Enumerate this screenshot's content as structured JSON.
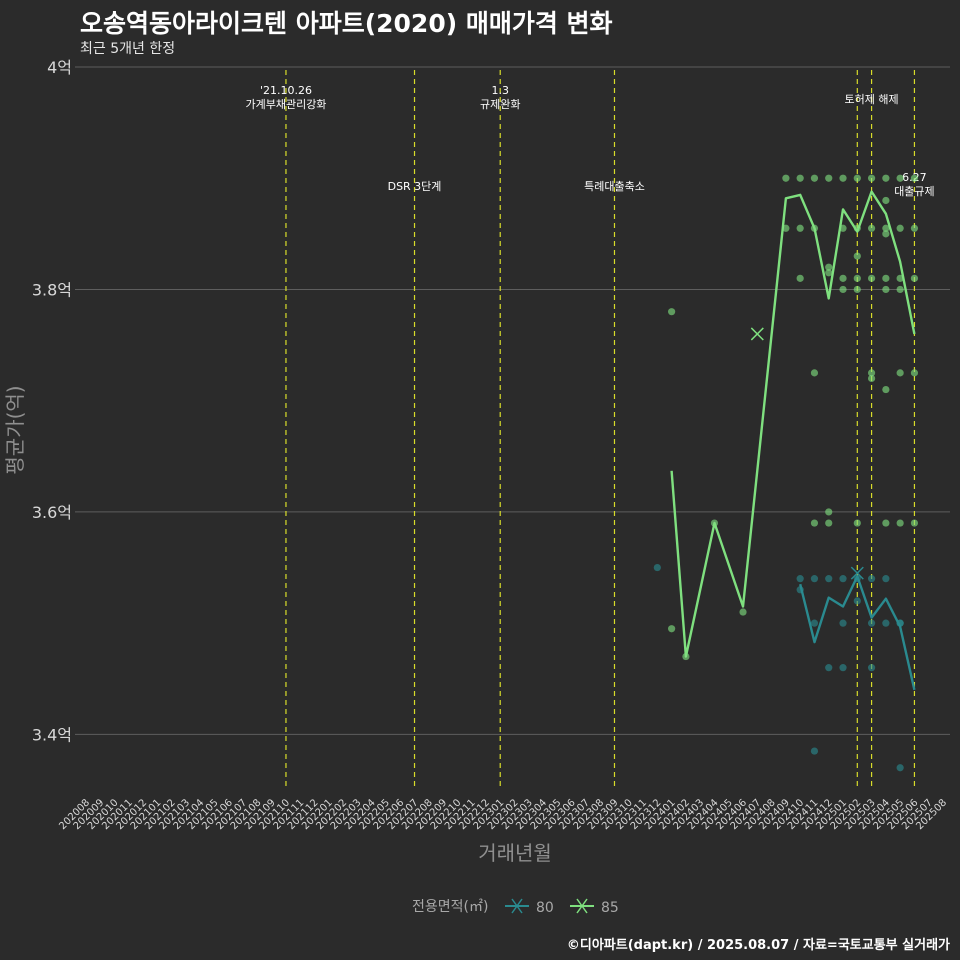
{
  "title": "오송역동아라이크텐 아파트(2020) 매매가격 변화",
  "subtitle": "최근 5개년 한정",
  "caption": "©디아파트(dapt.kr) / 2025.08.07 / 자료=국토교통부 실거래가",
  "chart_data": {
    "type": "line",
    "xlabel": "거래년월",
    "ylabel": "평균가(억)",
    "ylim": [
      3.35,
      4.0
    ],
    "y_ticks": [
      3.4,
      3.6,
      3.8,
      4.0
    ],
    "y_tick_labels": [
      "3.4억",
      "3.6억",
      "3.8억",
      "4억"
    ],
    "categories": [
      "202008",
      "202009",
      "202010",
      "202011",
      "202012",
      "202101",
      "202102",
      "202103",
      "202104",
      "202105",
      "202106",
      "202107",
      "202108",
      "202109",
      "202110",
      "202111",
      "202112",
      "202201",
      "202202",
      "202203",
      "202204",
      "202205",
      "202206",
      "202207",
      "202208",
      "202209",
      "202210",
      "202211",
      "202212",
      "202301",
      "202302",
      "202303",
      "202304",
      "202305",
      "202306",
      "202307",
      "202308",
      "202309",
      "202310",
      "202311",
      "202312",
      "202401",
      "202402",
      "202403",
      "202404",
      "202405",
      "202406",
      "202407",
      "202408",
      "202409",
      "202410",
      "202411",
      "202412",
      "202501",
      "202502",
      "202503",
      "202504",
      "202505",
      "202506",
      "202507",
      "202508"
    ],
    "grid": true,
    "legend": {
      "title": "전용면적(㎡)",
      "position": "bottom"
    },
    "events": [
      {
        "x": "202110",
        "label_lines": [
          "'21.10.26",
          "가계부채관리강화"
        ],
        "level": "top"
      },
      {
        "x": "202207",
        "label_lines": [
          "DSR 3단계"
        ],
        "level": "mid"
      },
      {
        "x": "202301",
        "label_lines": [
          "1.3",
          "규제완화"
        ],
        "level": "top"
      },
      {
        "x": "202309",
        "label_lines": [
          "특례대출축소"
        ],
        "level": "mid"
      },
      {
        "x": "202502",
        "label_lines": [],
        "level": "none"
      },
      {
        "x": "202503",
        "label_lines": [
          "토허제 해제"
        ],
        "level": "upper"
      },
      {
        "x": "202506",
        "label_lines": [
          "6.27",
          "대출규제"
        ],
        "level": "right"
      }
    ],
    "series": [
      {
        "name": "80",
        "color": "#2a8a8f",
        "line": [
          [
            "202410",
            3.535
          ],
          [
            "202411",
            3.483
          ],
          [
            "202412",
            3.523
          ],
          [
            "202501",
            3.515
          ],
          [
            "202502",
            3.542
          ],
          [
            "202503",
            3.505
          ],
          [
            "202504",
            3.522
          ],
          [
            "202505",
            3.497
          ],
          [
            "202506",
            3.44
          ]
        ],
        "points": [
          [
            "202312",
            3.55
          ],
          [
            "202410",
            3.54
          ],
          [
            "202410",
            3.53
          ],
          [
            "202411",
            3.54
          ],
          [
            "202411",
            3.5
          ],
          [
            "202411",
            3.385
          ],
          [
            "202412",
            3.54
          ],
          [
            "202412",
            3.46
          ],
          [
            "202501",
            3.54
          ],
          [
            "202501",
            3.5
          ],
          [
            "202501",
            3.46
          ],
          [
            "202502",
            3.54
          ],
          [
            "202502",
            3.52
          ],
          [
            "202503",
            3.54
          ],
          [
            "202503",
            3.5
          ],
          [
            "202503",
            3.46
          ],
          [
            "202504",
            3.54
          ],
          [
            "202504",
            3.5
          ],
          [
            "202505",
            3.5
          ],
          [
            "202505",
            3.5
          ],
          [
            "202505",
            3.37
          ]
        ],
        "marker": [
          "202502",
          3.545
        ]
      },
      {
        "name": "85",
        "color": "#7fe07f",
        "line": [
          [
            "202401",
            3.637
          ],
          [
            "202402",
            3.47
          ],
          [
            "202404",
            3.59
          ],
          [
            "202406",
            3.515
          ],
          [
            "202409",
            3.882
          ],
          [
            "202410",
            3.885
          ],
          [
            "202411",
            3.855
          ],
          [
            "202412",
            3.792
          ],
          [
            "202501",
            3.872
          ],
          [
            "202502",
            3.852
          ],
          [
            "202503",
            3.888
          ],
          [
            "202504",
            3.868
          ],
          [
            "202505",
            3.825
          ],
          [
            "202506",
            3.76
          ]
        ],
        "points": [
          [
            "202401",
            3.78
          ],
          [
            "202401",
            3.495
          ],
          [
            "202402",
            3.47
          ],
          [
            "202404",
            3.59
          ],
          [
            "202406",
            3.51
          ],
          [
            "202409",
            3.9
          ],
          [
            "202409",
            3.855
          ],
          [
            "202410",
            3.9
          ],
          [
            "202410",
            3.855
          ],
          [
            "202410",
            3.81
          ],
          [
            "202411",
            3.9
          ],
          [
            "202411",
            3.855
          ],
          [
            "202411",
            3.725
          ],
          [
            "202411",
            3.59
          ],
          [
            "202412",
            3.9
          ],
          [
            "202412",
            3.82
          ],
          [
            "202412",
            3.815
          ],
          [
            "202412",
            3.59
          ],
          [
            "202412",
            3.6
          ],
          [
            "202501",
            3.9
          ],
          [
            "202501",
            3.855
          ],
          [
            "202501",
            3.81
          ],
          [
            "202501",
            3.8
          ],
          [
            "202502",
            3.9
          ],
          [
            "202502",
            3.855
          ],
          [
            "202502",
            3.81
          ],
          [
            "202502",
            3.8
          ],
          [
            "202502",
            3.83
          ],
          [
            "202502",
            3.59
          ],
          [
            "202503",
            3.9
          ],
          [
            "202503",
            3.855
          ],
          [
            "202503",
            3.81
          ],
          [
            "202503",
            3.72
          ],
          [
            "202503",
            3.725
          ],
          [
            "202504",
            3.9
          ],
          [
            "202504",
            3.855
          ],
          [
            "202504",
            3.88
          ],
          [
            "202504",
            3.85
          ],
          [
            "202504",
            3.81
          ],
          [
            "202504",
            3.8
          ],
          [
            "202504",
            3.71
          ],
          [
            "202504",
            3.59
          ],
          [
            "202505",
            3.9
          ],
          [
            "202505",
            3.855
          ],
          [
            "202505",
            3.81
          ],
          [
            "202505",
            3.8
          ],
          [
            "202505",
            3.725
          ],
          [
            "202505",
            3.59
          ],
          [
            "202506",
            3.9
          ],
          [
            "202506",
            3.855
          ],
          [
            "202506",
            3.81
          ],
          [
            "202506",
            3.725
          ],
          [
            "202506",
            3.59
          ]
        ],
        "marker": [
          "202407",
          3.76
        ]
      }
    ]
  }
}
